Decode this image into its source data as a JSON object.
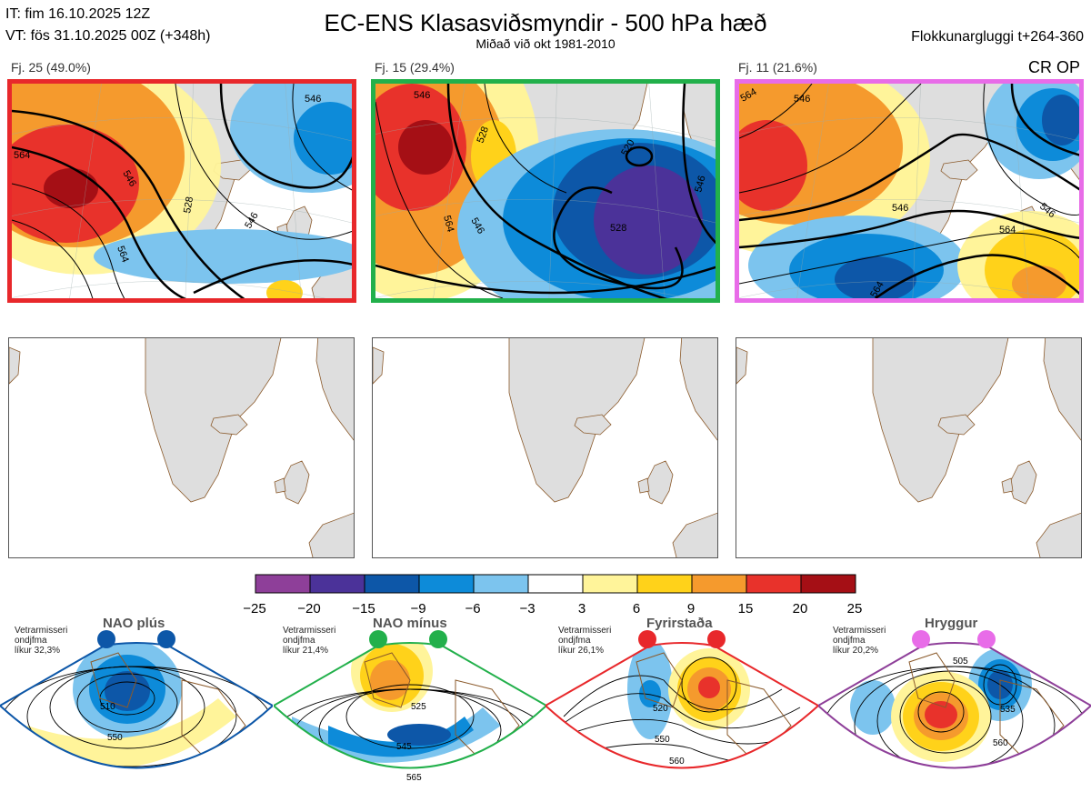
{
  "header": {
    "it_line": "IT: fim 16.10.2025 12Z",
    "vt_line": "VT: fös 31.10.2025 00Z  (+348h)",
    "title": "EC-ENS Klasasviðsmyndir - 500 hPa hæð",
    "subtitle": "Miðað við okt 1981-2010",
    "window": "Flokkunargluggi t+264-360",
    "crop": "CR OP"
  },
  "clusters": [
    {
      "label": "Fj. 25 (49.0%)",
      "color": "#e8282b",
      "contours": [
        "546",
        "528",
        "546",
        "564",
        "546",
        "564"
      ]
    },
    {
      "label": "Fj. 15 (29.4%)",
      "color": "#22b04b",
      "contours": [
        "546",
        "528",
        "546",
        "564",
        "528",
        "546",
        "520"
      ]
    },
    {
      "label": "Fj. 11 (21.6%)",
      "color": "#e86ce8",
      "contours": [
        "546",
        "564",
        "546",
        "546",
        "564",
        "564"
      ]
    }
  ],
  "colorbar": {
    "ticks": [
      "−25",
      "−20",
      "−15",
      "−9",
      "−6",
      "−3",
      "3",
      "6",
      "9",
      "15",
      "20",
      "25"
    ],
    "colors": [
      "#8e3f99",
      "#4b3299",
      "#0d57a8",
      "#0d8bd9",
      "#7cc4ee",
      "#ffffff",
      "#fff49a",
      "#ffd21a",
      "#f59a2d",
      "#e8322b",
      "#a50f15"
    ]
  },
  "regimes": [
    {
      "name": "NAO plús",
      "info": [
        "Vetrarmisseri",
        "ondjfma",
        "líkur 32,3%"
      ],
      "color": "#0d57a8",
      "contours": [
        "510",
        "550"
      ]
    },
    {
      "name": "NAO mínus",
      "info": [
        "Vetrarmisseri",
        "ondjfma",
        "líkur 21,4%"
      ],
      "color": "#22b04b",
      "contours": [
        "525",
        "545",
        "565"
      ]
    },
    {
      "name": "Fyrirstaða",
      "info": [
        "Vetrarmisseri",
        "ondjfma",
        "líkur 26,1%"
      ],
      "color": "#e8282b",
      "contours": [
        "520",
        "550",
        "560"
      ]
    },
    {
      "name": "Hryggur",
      "info": [
        "Vetrarmisseri",
        "ondjfma",
        "líkur 20,2%"
      ],
      "color": "#e86ce8",
      "contours": [
        "505",
        "535",
        "560"
      ]
    }
  ]
}
